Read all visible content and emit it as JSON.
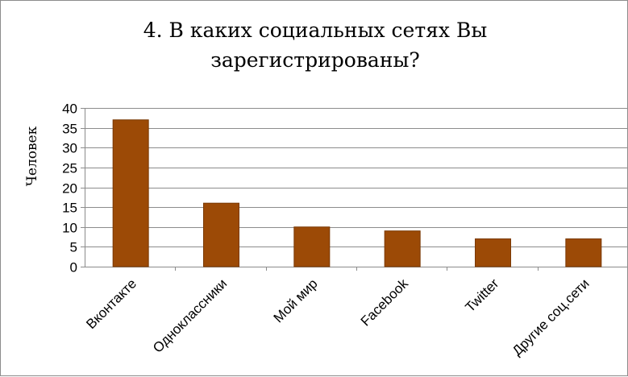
{
  "chart_data": {
    "type": "bar",
    "title": "4. В каких социальных сетях Вы\nзарегистрированы?",
    "xlabel": "",
    "ylabel": "Человек",
    "categories": [
      "Вконтакте",
      "Одноклассники",
      "Мой мир",
      "Facebook",
      "Twitter",
      "Другие соц.сети"
    ],
    "values": [
      37,
      16,
      10,
      9,
      7,
      7
    ],
    "ylim": [
      0,
      40
    ],
    "yticks": [
      0,
      5,
      10,
      15,
      20,
      25,
      30,
      35,
      40
    ],
    "grid": true,
    "legend": "none",
    "bar_color": "#9C4A06",
    "bar_border_color": "#7a3905"
  }
}
